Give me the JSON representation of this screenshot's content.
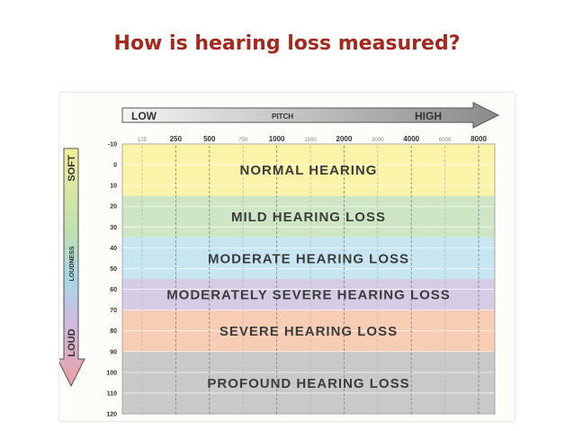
{
  "title": "How is hearing loss measured?",
  "pitch_axis": {
    "low": "LOW",
    "label": "PITCH",
    "high": "HIGH",
    "ticks": [
      {
        "label": "125",
        "major": false
      },
      {
        "label": "250",
        "major": true
      },
      {
        "label": "500",
        "major": true
      },
      {
        "label": "750",
        "major": false
      },
      {
        "label": "1000",
        "major": true
      },
      {
        "label": "1500",
        "major": false
      },
      {
        "label": "2000",
        "major": true
      },
      {
        "label": "3000",
        "major": false
      },
      {
        "label": "4000",
        "major": true
      },
      {
        "label": "6000",
        "major": false
      },
      {
        "label": "8000",
        "major": true
      }
    ]
  },
  "loudness_axis": {
    "soft": "SOFT",
    "label": "LOUDNESS",
    "loud": "LOUD",
    "db_levels": [
      "-10",
      "0",
      "10",
      "20",
      "30",
      "40",
      "50",
      "60",
      "70",
      "80",
      "90",
      "100",
      "110",
      "120"
    ]
  },
  "bands": [
    {
      "label": "Normal Hearing",
      "from_db": -10,
      "to_db": 15,
      "color": "#fbf3a8"
    },
    {
      "label": "Mild Hearing Loss",
      "from_db": 15,
      "to_db": 35,
      "color": "#cfe6c4"
    },
    {
      "label": "Moderate Hearing Loss",
      "from_db": 35,
      "to_db": 55,
      "color": "#c8e6f2"
    },
    {
      "label": "Moderately Severe Hearing Loss",
      "from_db": 55,
      "to_db": 70,
      "color": "#d6cce6"
    },
    {
      "label": "Severe Hearing Loss",
      "from_db": 70,
      "to_db": 90,
      "color": "#f7cdb4"
    },
    {
      "label": "Profound Hearing Loss",
      "from_db": 90,
      "to_db": 120,
      "color": "#c9c9c9"
    }
  ]
}
